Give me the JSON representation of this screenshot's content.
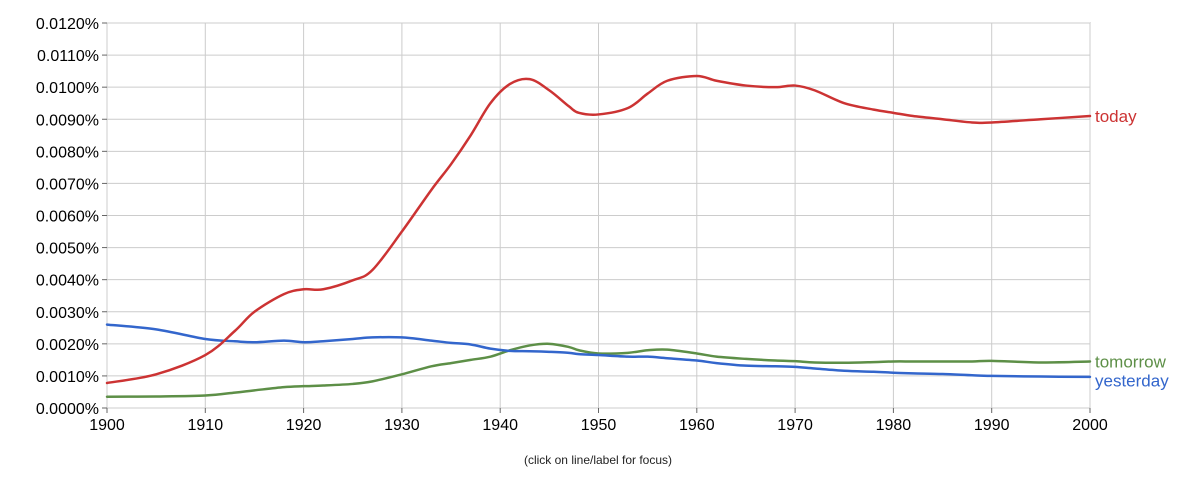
{
  "chart_data": {
    "type": "line",
    "x_range": [
      1900,
      2000
    ],
    "y_range": [
      0,
      0.012
    ],
    "y_unit": "%",
    "grid": true,
    "y_tick_labels": [
      "0.0000%",
      "0.0010%",
      "0.0020%",
      "0.0030%",
      "0.0040%",
      "0.0050%",
      "0.0060%",
      "0.0070%",
      "0.0080%",
      "0.0090%",
      "0.0100%",
      "0.0110%",
      "0.0120%"
    ],
    "x_tick_labels": [
      "1900",
      "1910",
      "1920",
      "1930",
      "1940",
      "1950",
      "1960",
      "1970",
      "1980",
      "1990",
      "2000"
    ],
    "x": [
      1900,
      1905,
      1910,
      1913,
      1915,
      1918,
      1920,
      1922,
      1925,
      1927,
      1930,
      1933,
      1935,
      1937,
      1939,
      1941,
      1943,
      1945,
      1947,
      1948,
      1950,
      1953,
      1955,
      1957,
      1960,
      1962,
      1965,
      1968,
      1970,
      1972,
      1975,
      1978,
      1980,
      1982,
      1985,
      1988,
      1990,
      1995,
      2000
    ],
    "series": [
      {
        "name": "today",
        "color": "#cc3333",
        "values": [
          0.00078,
          0.00105,
          0.00165,
          0.0024,
          0.003,
          0.00355,
          0.0037,
          0.0037,
          0.00398,
          0.0043,
          0.0055,
          0.0068,
          0.0076,
          0.0085,
          0.0095,
          0.0101,
          0.01025,
          0.0099,
          0.0094,
          0.0092,
          0.00915,
          0.00935,
          0.0098,
          0.0102,
          0.01035,
          0.0102,
          0.01005,
          0.01,
          0.01005,
          0.0099,
          0.0095,
          0.0093,
          0.0092,
          0.0091,
          0.009,
          0.0089,
          0.0089,
          0.009,
          0.0091
        ]
      },
      {
        "name": "tomorrow",
        "color": "#5d8f47",
        "values": [
          0.00035,
          0.00036,
          0.00039,
          0.00048,
          0.00055,
          0.00065,
          0.00068,
          0.0007,
          0.00075,
          0.00083,
          0.00105,
          0.0013,
          0.0014,
          0.0015,
          0.0016,
          0.0018,
          0.00195,
          0.002,
          0.0019,
          0.0018,
          0.0017,
          0.00172,
          0.0018,
          0.00182,
          0.0017,
          0.0016,
          0.00153,
          0.00148,
          0.00146,
          0.00142,
          0.00141,
          0.00143,
          0.00145,
          0.00145,
          0.00145,
          0.00145,
          0.00147,
          0.00142,
          0.00145
        ]
      },
      {
        "name": "yesterday",
        "color": "#3366cc",
        "values": [
          0.0026,
          0.00245,
          0.00215,
          0.00208,
          0.00205,
          0.0021,
          0.00205,
          0.00208,
          0.00215,
          0.0022,
          0.0022,
          0.0021,
          0.00203,
          0.00198,
          0.00185,
          0.00178,
          0.00177,
          0.00175,
          0.00172,
          0.00168,
          0.00165,
          0.0016,
          0.0016,
          0.00155,
          0.00148,
          0.0014,
          0.00132,
          0.0013,
          0.00128,
          0.00123,
          0.00116,
          0.00113,
          0.0011,
          0.00108,
          0.00106,
          0.00102,
          0.001,
          0.00098,
          0.00097
        ]
      }
    ],
    "footer_note": "(click on line/label for focus)"
  }
}
